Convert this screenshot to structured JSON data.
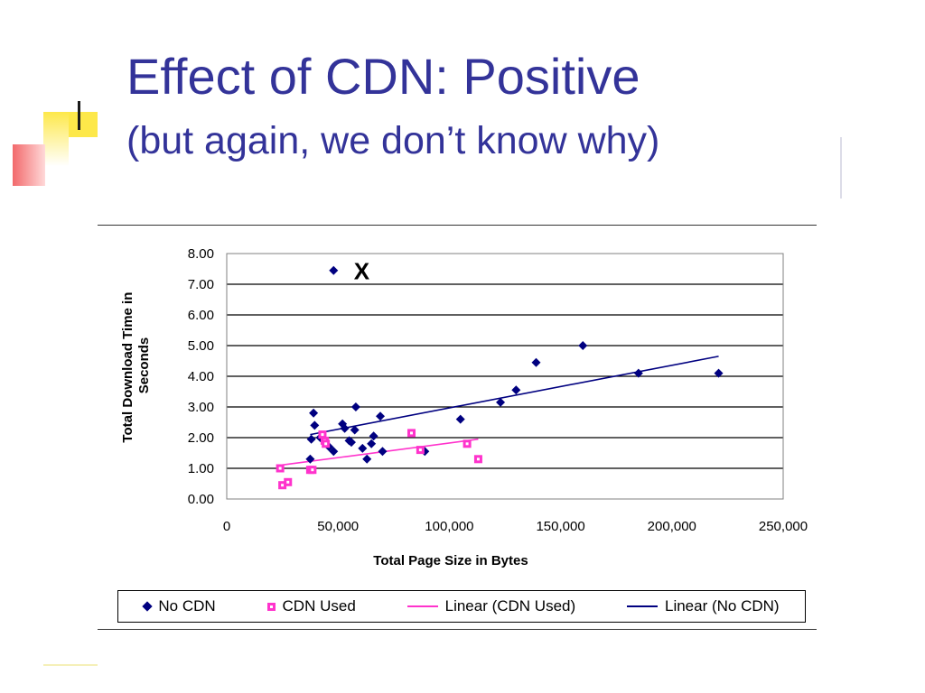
{
  "slide": {
    "title": "Effect of CDN:  Positive",
    "subtitle": "(but again, we don’t know why)"
  },
  "colors": {
    "title": "#333399",
    "no_cdn": "#000080",
    "cdn_used": "#ff33cc"
  },
  "chart_data": {
    "type": "scatter",
    "xlabel": "Total Page Size in Bytes",
    "ylabel_lines": [
      "Total Download Time in",
      "Seconds"
    ],
    "xlim": [
      0,
      250000
    ],
    "ylim": [
      0,
      8
    ],
    "x_ticks": [
      "0",
      "50,000",
      "100,000",
      "150,000",
      "200,000",
      "250,000"
    ],
    "y_ticks": [
      "0.00",
      "1.00",
      "2.00",
      "3.00",
      "4.00",
      "5.00",
      "6.00",
      "7.00",
      "8.00"
    ],
    "grid": "horizontal",
    "annotations": [
      {
        "text": "X",
        "x": 62000,
        "y": 7.45
      }
    ],
    "series": [
      {
        "name": "No CDN",
        "marker": "diamond",
        "points": [
          [
            48000,
            7.45
          ],
          [
            39000,
            2.8
          ],
          [
            39500,
            2.4
          ],
          [
            38000,
            1.95
          ],
          [
            37500,
            1.3
          ],
          [
            42000,
            2.0
          ],
          [
            46000,
            1.7
          ],
          [
            48000,
            1.55
          ],
          [
            52000,
            2.45
          ],
          [
            53000,
            2.3
          ],
          [
            55000,
            1.9
          ],
          [
            56000,
            1.85
          ],
          [
            57500,
            2.25
          ],
          [
            58000,
            3.0
          ],
          [
            61000,
            1.65
          ],
          [
            63000,
            1.3
          ],
          [
            65000,
            1.8
          ],
          [
            66000,
            2.05
          ],
          [
            69000,
            2.7
          ],
          [
            70000,
            1.55
          ],
          [
            89000,
            1.55
          ],
          [
            105000,
            2.6
          ],
          [
            123000,
            3.15
          ],
          [
            130000,
            3.55
          ],
          [
            139000,
            4.45
          ],
          [
            160000,
            5.0
          ],
          [
            185000,
            4.1
          ],
          [
            221000,
            4.1
          ]
        ]
      },
      {
        "name": "CDN Used",
        "marker": "square",
        "points": [
          [
            24000,
            1.0
          ],
          [
            25000,
            0.45
          ],
          [
            27500,
            0.55
          ],
          [
            37500,
            0.95
          ],
          [
            38500,
            0.95
          ],
          [
            43000,
            2.1
          ],
          [
            44000,
            1.9
          ],
          [
            44500,
            1.8
          ],
          [
            83000,
            2.15
          ],
          [
            87000,
            1.6
          ],
          [
            108000,
            1.8
          ],
          [
            113000,
            1.3
          ]
        ]
      },
      {
        "name": "Linear (CDN Used)",
        "type": "line",
        "points": [
          [
            24000,
            1.1
          ],
          [
            113000,
            1.95
          ]
        ]
      },
      {
        "name": "Linear (No CDN)",
        "type": "line",
        "points": [
          [
            37500,
            2.1
          ],
          [
            221000,
            4.65
          ]
        ]
      }
    ],
    "legend": {
      "position": "bottom",
      "items": [
        "No CDN",
        "CDN Used",
        "Linear (CDN Used)",
        "Linear (No CDN)"
      ]
    }
  }
}
